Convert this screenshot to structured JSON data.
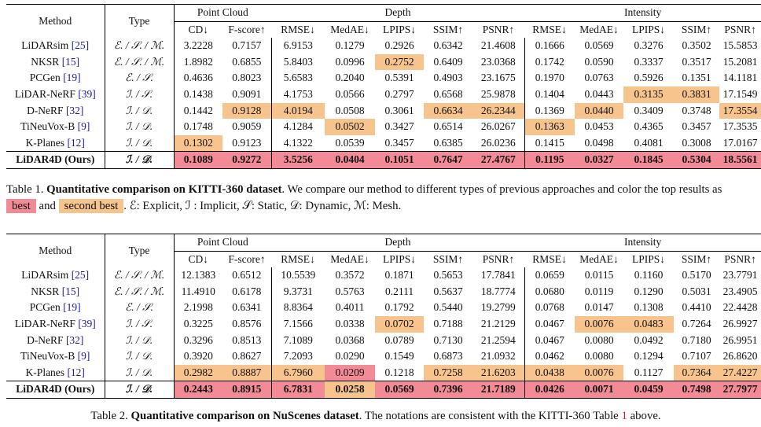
{
  "legend_colors": {
    "best": "#f28b96",
    "second": "#f7c48e"
  },
  "headers": {
    "method": "Method",
    "type": "Type",
    "point_cloud": "Point Cloud",
    "depth": "Depth",
    "intensity": "Intensity",
    "metrics": [
      "CD↓",
      "F-score↑",
      "RMSE↓",
      "MedAE↓",
      "LPIPS↓",
      "SSIM↑",
      "PSNR↑",
      "RMSE↓",
      "MedAE↓",
      "LPIPS↓",
      "SSIM↑",
      "PSNR↑"
    ]
  },
  "table1": {
    "rows": [
      {
        "name": "LiDARsim",
        "cite": "[25]",
        "type": "ℰ. / 𝒮. / ℳ.",
        "vals": [
          "3.2228",
          "0.7157",
          "6.9153",
          "0.1279",
          "0.2926",
          "0.6342",
          "21.4608",
          "0.1666",
          "0.0569",
          "0.3276",
          "0.3502",
          "15.5853"
        ],
        "hl": [
          "",
          "",
          "",
          "",
          "",
          "",
          "",
          "",
          "",
          "",
          "",
          ""
        ]
      },
      {
        "name": "NKSR",
        "cite": "[15]",
        "type": "ℰ. / 𝒮. / ℳ.",
        "vals": [
          "1.8982",
          "0.6855",
          "5.8403",
          "0.0996",
          "0.2752",
          "0.6409",
          "23.0368",
          "0.1742",
          "0.0590",
          "0.3337",
          "0.3517",
          "15.2081"
        ],
        "hl": [
          "",
          "",
          "",
          "",
          "second",
          "",
          "",
          "",
          "",
          "",
          "",
          ""
        ]
      },
      {
        "name": "PCGen",
        "cite": "[19]",
        "type": "ℰ. / 𝒮.",
        "vals": [
          "0.4636",
          "0.8023",
          "5.6583",
          "0.2040",
          "0.5391",
          "0.4903",
          "23.1675",
          "0.1970",
          "0.0763",
          "0.5926",
          "0.1351",
          "14.1181"
        ],
        "hl": [
          "",
          "",
          "",
          "",
          "",
          "",
          "",
          "",
          "",
          "",
          "",
          ""
        ]
      },
      {
        "name": "LiDAR-NeRF",
        "cite": "[39]",
        "type": "ℐ. / 𝒮.",
        "vals": [
          "0.1438",
          "0.9091",
          "4.1753",
          "0.0566",
          "0.2797",
          "0.6568",
          "25.9878",
          "0.1404",
          "0.0443",
          "0.3135",
          "0.3831",
          "17.1549"
        ],
        "hl": [
          "",
          "",
          "",
          "",
          "",
          "",
          "",
          "",
          "",
          "second",
          "second",
          ""
        ]
      },
      {
        "name": "D-NeRF",
        "cite": "[32]",
        "type": "ℐ. / 𝒟.",
        "vals": [
          "0.1442",
          "0.9128",
          "4.0194",
          "0.0508",
          "0.3061",
          "0.6634",
          "26.2344",
          "0.1369",
          "0.0440",
          "0.3409",
          "0.3748",
          "17.3554"
        ],
        "hl": [
          "",
          "second",
          "second",
          "",
          "",
          "second",
          "second",
          "",
          "second",
          "",
          "",
          "second"
        ]
      },
      {
        "name": "TiNeuVox-B",
        "cite": "[9]",
        "type": "ℐ. / 𝒟.",
        "vals": [
          "0.1748",
          "0.9059",
          "4.1284",
          "0.0502",
          "0.3427",
          "0.6514",
          "26.0267",
          "0.1363",
          "0.0453",
          "0.4365",
          "0.3457",
          "17.3535"
        ],
        "hl": [
          "",
          "",
          "",
          "second",
          "",
          "",
          "",
          "second",
          "",
          "",
          "",
          ""
        ]
      },
      {
        "name": "K-Planes",
        "cite": "[12]",
        "type": "ℐ. / 𝒟.",
        "vals": [
          "0.1302",
          "0.9123",
          "4.1322",
          "0.0539",
          "0.3457",
          "0.6385",
          "26.0236",
          "0.1415",
          "0.0498",
          "0.4081",
          "0.3008",
          "17.0167"
        ],
        "hl": [
          "second",
          "",
          "",
          "",
          "",
          "",
          "",
          "",
          "",
          "",
          "",
          ""
        ]
      },
      {
        "name": "LiDAR4D (Ours)",
        "cite": "",
        "type": "ℐ. / 𝒟.",
        "vals": [
          "0.1089",
          "0.9272",
          "3.5256",
          "0.0404",
          "0.1051",
          "0.7647",
          "27.4767",
          "0.1195",
          "0.0327",
          "0.1845",
          "0.5304",
          "18.5561"
        ],
        "hl": [
          "best",
          "best",
          "best",
          "best",
          "best",
          "best",
          "best",
          "best",
          "best",
          "best",
          "best",
          "best"
        ]
      }
    ]
  },
  "table2": {
    "rows": [
      {
        "name": "LiDARsim",
        "cite": "[25]",
        "type": "ℰ. / 𝒮. / ℳ.",
        "vals": [
          "12.1383",
          "0.6512",
          "10.5539",
          "0.3572",
          "0.1871",
          "0.5653",
          "17.7841",
          "0.0659",
          "0.0115",
          "0.1160",
          "0.5170",
          "23.7791"
        ],
        "hl": [
          "",
          "",
          "",
          "",
          "",
          "",
          "",
          "",
          "",
          "",
          "",
          ""
        ]
      },
      {
        "name": "NKSR",
        "cite": "[15]",
        "type": "ℰ. / 𝒮. / ℳ.",
        "vals": [
          "11.4910",
          "0.6178",
          "9.3731",
          "0.5763",
          "0.2111",
          "0.5637",
          "18.7774",
          "0.0680",
          "0.0119",
          "0.1290",
          "0.5031",
          "23.4905"
        ],
        "hl": [
          "",
          "",
          "",
          "",
          "",
          "",
          "",
          "",
          "",
          "",
          "",
          ""
        ]
      },
      {
        "name": "PCGen",
        "cite": "[19]",
        "type": "ℰ. / 𝒮.",
        "vals": [
          "2.1998",
          "0.6341",
          "8.8364",
          "0.4011",
          "0.1792",
          "0.5440",
          "19.2799",
          "0.0768",
          "0.0147",
          "0.1308",
          "0.4410",
          "22.4428"
        ],
        "hl": [
          "",
          "",
          "",
          "",
          "",
          "",
          "",
          "",
          "",
          "",
          "",
          ""
        ]
      },
      {
        "name": "LiDAR-NeRF",
        "cite": "[39]",
        "type": "ℐ. / 𝒮.",
        "vals": [
          "0.3225",
          "0.8576",
          "7.1566",
          "0.0338",
          "0.0702",
          "0.7188",
          "21.2129",
          "0.0467",
          "0.0076",
          "0.0483",
          "0.7264",
          "26.9927"
        ],
        "hl": [
          "",
          "",
          "",
          "",
          "second",
          "",
          "",
          "",
          "second",
          "second",
          "",
          ""
        ]
      },
      {
        "name": "D-NeRF",
        "cite": "[32]",
        "type": "ℐ. / 𝒟.",
        "vals": [
          "0.3296",
          "0.8513",
          "7.1089",
          "0.0368",
          "0.0789",
          "0.7130",
          "21.2594",
          "0.0467",
          "0.0080",
          "0.0492",
          "0.7180",
          "26.9951"
        ],
        "hl": [
          "",
          "",
          "",
          "",
          "",
          "",
          "",
          "",
          "",
          "",
          "",
          ""
        ]
      },
      {
        "name": "TiNeuVox-B",
        "cite": "[9]",
        "type": "ℐ. / 𝒟.",
        "vals": [
          "0.3920",
          "0.8627",
          "7.2093",
          "0.0290",
          "0.1549",
          "0.6873",
          "21.0932",
          "0.0462",
          "0.0080",
          "0.1294",
          "0.7107",
          "26.8620"
        ],
        "hl": [
          "",
          "",
          "",
          "",
          "",
          "",
          "",
          "",
          "",
          "",
          "",
          ""
        ]
      },
      {
        "name": "K-Planes",
        "cite": "[12]",
        "type": "ℐ. / 𝒟.",
        "vals": [
          "0.2982",
          "0.8887",
          "6.7960",
          "0.0209",
          "0.1218",
          "0.7258",
          "21.6203",
          "0.0438",
          "0.0076",
          "0.1127",
          "0.7364",
          "27.4227"
        ],
        "hl": [
          "second",
          "second",
          "second",
          "best",
          "",
          "second",
          "second",
          "second",
          "second",
          "",
          "second",
          "second"
        ]
      },
      {
        "name": "LiDAR4D (Ours)",
        "cite": "",
        "type": "ℐ. / 𝒟.",
        "vals": [
          "0.2443",
          "0.8915",
          "6.7831",
          "0.0258",
          "0.0569",
          "0.7396",
          "21.7189",
          "0.0426",
          "0.0071",
          "0.0459",
          "0.7498",
          "27.7977"
        ],
        "hl": [
          "best",
          "best",
          "best",
          "second",
          "best",
          "best",
          "best",
          "best",
          "best",
          "best",
          "best",
          "best"
        ]
      }
    ]
  },
  "caption1": {
    "label": "Table 1.",
    "title": "Quantitative comparison on KITTI-360 dataset",
    "text_a": ". We compare our method to different types of previous approaches and color the top results as",
    "best": "best",
    "and": "and",
    "second": "second best",
    "text_b": ". ℰ: Explicit, ℐ : Implicit, 𝒮: Static, 𝒟: Dynamic, ℳ: Mesh."
  },
  "caption2": {
    "label": "Table 2.",
    "title": "Quantitative comparison on NuScenes dataset",
    "text_a": ". The notations are consistent with the KITTI-360 Table",
    "ref": "1",
    "text_b": "above."
  }
}
